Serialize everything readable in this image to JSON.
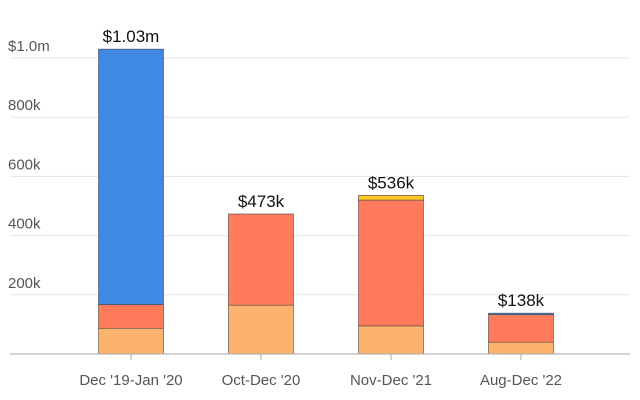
{
  "chart_data": {
    "type": "bar",
    "stacked": true,
    "title": "",
    "xlabel": "",
    "ylabel": "",
    "ylim": [
      0,
      1050000
    ],
    "grid": true,
    "legend": "none",
    "categories": [
      "Dec '19-Jan '20",
      "Oct-Dec '20",
      "Nov-Dec '21",
      "Aug-Dec '22"
    ],
    "totals": [
      "$1.03m",
      "$473k",
      "$536k",
      "$138k"
    ],
    "y_ticks": [
      {
        "value": 200000,
        "label": "200k"
      },
      {
        "value": 400000,
        "label": "400k"
      },
      {
        "value": 600000,
        "label": "600k"
      },
      {
        "value": 800000,
        "label": "800k"
      },
      {
        "value": 1000000,
        "label": "$1.0m"
      }
    ],
    "series": [
      {
        "color": "#fdb26e",
        "values": [
          87000,
          165000,
          95000,
          40000
        ]
      },
      {
        "color": "#ff7b5c",
        "values": [
          80000,
          308000,
          425000,
          93000
        ]
      },
      {
        "color": "#3f88e4",
        "values": [
          863000,
          0,
          0,
          5000
        ]
      },
      {
        "color": "#ffc629",
        "values": [
          0,
          0,
          16000,
          0
        ]
      }
    ]
  }
}
